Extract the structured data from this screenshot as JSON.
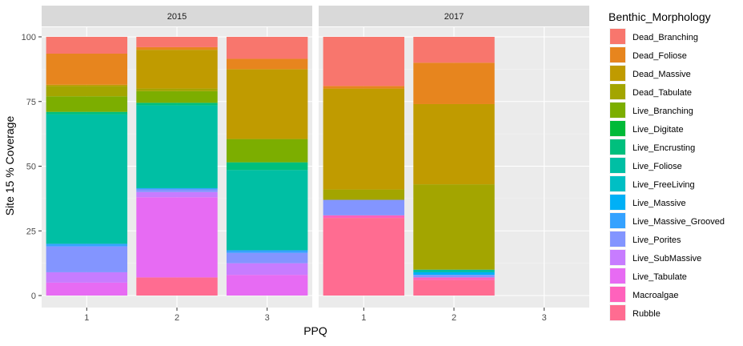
{
  "chart_data": {
    "type": "bar",
    "stacked": true,
    "facet_by": "year",
    "xlabel": "PPQ",
    "ylabel": "Site 15 % Coverage",
    "ylim": [
      0,
      100
    ],
    "yticks": [
      0,
      25,
      50,
      75,
      100
    ],
    "categories": [
      "1",
      "2",
      "3"
    ],
    "grid": true,
    "legend_position": "right",
    "legend_title": "Benthic_Morphology",
    "series": [
      {
        "name": "Dead_Branching",
        "color": "#F8766D"
      },
      {
        "name": "Dead_Foliose",
        "color": "#E7851E"
      },
      {
        "name": "Dead_Massive",
        "color": "#C09B00"
      },
      {
        "name": "Dead_Tabulate",
        "color": "#A3A500"
      },
      {
        "name": "Live_Branching",
        "color": "#7CAE00"
      },
      {
        "name": "Live_Digitate",
        "color": "#00BA38"
      },
      {
        "name": "Live_Encrusting",
        "color": "#00BF7D"
      },
      {
        "name": "Live_Foliose",
        "color": "#00BFA4"
      },
      {
        "name": "Live_FreeLiving",
        "color": "#00BFC4"
      },
      {
        "name": "Live_Massive",
        "color": "#00B0F6"
      },
      {
        "name": "Live_Massive_Grooved",
        "color": "#35A2FF"
      },
      {
        "name": "Live_Porites",
        "color": "#8395FF"
      },
      {
        "name": "Live_SubMassive",
        "color": "#C77CFF"
      },
      {
        "name": "Live_Tabulate",
        "color": "#E76BF3"
      },
      {
        "name": "Macroalgae",
        "color": "#FF62BC"
      },
      {
        "name": "Rubble",
        "color": "#FF6C91"
      }
    ],
    "panels": [
      {
        "title": "2015",
        "bars": [
          {
            "category": "1",
            "segments": [
              {
                "series": "Live_Tabulate",
                "value": 5
              },
              {
                "series": "Live_SubMassive",
                "value": 4
              },
              {
                "series": "Live_Porites",
                "value": 10
              },
              {
                "series": "Live_Massive_Grooved",
                "value": 1
              },
              {
                "series": "Live_Foliose",
                "value": 50
              },
              {
                "series": "Live_Encrusting",
                "value": 1
              },
              {
                "series": "Live_Branching",
                "value": 6
              },
              {
                "series": "Dead_Tabulate",
                "value": 4
              },
              {
                "series": "Dead_Massive",
                "value": 0.5
              },
              {
                "series": "Dead_Foliose",
                "value": 12
              },
              {
                "series": "Dead_Branching",
                "value": 6.5
              }
            ]
          },
          {
            "category": "2",
            "segments": [
              {
                "series": "Rubble",
                "value": 7
              },
              {
                "series": "Live_Tabulate",
                "value": 31
              },
              {
                "series": "Live_SubMassive",
                "value": 2
              },
              {
                "series": "Live_Porites",
                "value": 1
              },
              {
                "series": "Live_Massive_Grooved",
                "value": 0.5
              },
              {
                "series": "Live_Foliose",
                "value": 32
              },
              {
                "series": "Live_Encrusting",
                "value": 1
              },
              {
                "series": "Live_Branching",
                "value": 4.5
              },
              {
                "series": "Dead_Tabulate",
                "value": 1
              },
              {
                "series": "Dead_Massive",
                "value": 15
              },
              {
                "series": "Dead_Foliose",
                "value": 1
              },
              {
                "series": "Dead_Branching",
                "value": 4
              }
            ]
          },
          {
            "category": "3",
            "segments": [
              {
                "series": "Live_Tabulate",
                "value": 8
              },
              {
                "series": "Live_SubMassive",
                "value": 4.5
              },
              {
                "series": "Live_Porites",
                "value": 4
              },
              {
                "series": "Live_Massive_Grooved",
                "value": 1
              },
              {
                "series": "Live_Foliose",
                "value": 31
              },
              {
                "series": "Live_Encrusting",
                "value": 3
              },
              {
                "series": "Live_Branching",
                "value": 9
              },
              {
                "series": "Dead_Massive",
                "value": 27
              },
              {
                "series": "Dead_Foliose",
                "value": 4
              },
              {
                "series": "Dead_Branching",
                "value": 8.5
              }
            ]
          }
        ]
      },
      {
        "title": "2017",
        "bars": [
          {
            "category": "1",
            "segments": [
              {
                "series": "Rubble",
                "value": 30
              },
              {
                "series": "Macroalgae",
                "value": 1
              },
              {
                "series": "Live_Porites",
                "value": 6
              },
              {
                "series": "Dead_Tabulate",
                "value": 4
              },
              {
                "series": "Dead_Massive",
                "value": 39
              },
              {
                "series": "Dead_Foliose",
                "value": 1
              },
              {
                "series": "Dead_Branching",
                "value": 19
              }
            ]
          },
          {
            "category": "2",
            "segments": [
              {
                "series": "Rubble",
                "value": 6
              },
              {
                "series": "Macroalgae",
                "value": 1
              },
              {
                "series": "Live_Porites",
                "value": 1
              },
              {
                "series": "Live_Massive",
                "value": 1
              },
              {
                "series": "Live_Foliose",
                "value": 1
              },
              {
                "series": "Dead_Tabulate",
                "value": 33
              },
              {
                "series": "Dead_Massive",
                "value": 31
              },
              {
                "series": "Dead_Foliose",
                "value": 16
              },
              {
                "series": "Dead_Branching",
                "value": 10
              }
            ]
          }
        ]
      }
    ]
  }
}
